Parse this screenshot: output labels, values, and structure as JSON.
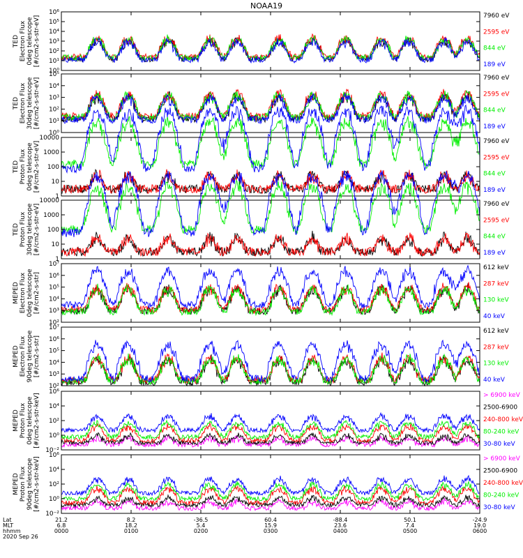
{
  "title": "NOAA19",
  "footer": {
    "row_labels": [
      "Lat",
      "MLT",
      "hhmm"
    ],
    "date": "2020 Sep 26",
    "ticks": [
      {
        "lat": "21.2",
        "mlt": "6.8",
        "hhmm": "0000"
      },
      {
        "lat": "8.2",
        "mlt": "18.2",
        "hhmm": "0100"
      },
      {
        "lat": "-36.5",
        "mlt": "5.4",
        "hhmm": "0200"
      },
      {
        "lat": "60.4",
        "mlt": "15.9",
        "hhmm": "0300"
      },
      {
        "lat": "-88.4",
        "mlt": "23.6",
        "hhmm": "0400"
      },
      {
        "lat": "50.1",
        "mlt": "7.4",
        "hhmm": "0500"
      },
      {
        "lat": "-24.9",
        "mlt": "19.0",
        "hhmm": "0600"
      }
    ]
  },
  "colors": {
    "black": "#000000",
    "red": "#ff0000",
    "green": "#00ee00",
    "blue": "#0000ff",
    "magenta": "#ff00ff"
  },
  "chart_data": [
    {
      "type": "line",
      "log_y": true,
      "ylim": [
        1,
        1000000
      ],
      "ylabel": [
        "TED",
        "Electron Flux",
        "0deg telescope",
        "[#/cm2-s-str-eV]"
      ],
      "y_ticks": [
        {
          "v": 1,
          "label": "10⁰"
        },
        {
          "v": 10,
          "label": "10¹"
        },
        {
          "v": 100,
          "label": "10²"
        },
        {
          "v": 1000,
          "label": "10³"
        },
        {
          "v": 10000,
          "label": "10⁴"
        },
        {
          "v": 100000,
          "label": "10⁵"
        },
        {
          "v": 1000000,
          "label": "10⁶"
        }
      ],
      "series": [
        {
          "name": "7960 eV",
          "color": "#000000",
          "base": 15,
          "noise": 2
        },
        {
          "name": "2595 eV",
          "color": "#ff0000",
          "base": 25,
          "noise": 2
        },
        {
          "name": "844 eV",
          "color": "#00ee00",
          "base": 20,
          "noise": 2
        },
        {
          "name": "189 eV",
          "color": "#0000ff",
          "base": 12,
          "noise": 2
        }
      ]
    },
    {
      "type": "line",
      "log_y": true,
      "ylim": [
        1,
        100000
      ],
      "ylabel": [
        "TED",
        "Electron Flux",
        "30deg telescope",
        "[#/cm2-s-str-eV]"
      ],
      "y_ticks": [
        {
          "v": 1,
          "label": "10⁰"
        },
        {
          "v": 10,
          "label": "10¹"
        },
        {
          "v": 100,
          "label": "10²"
        },
        {
          "v": 1000,
          "label": "10³"
        },
        {
          "v": 10000,
          "label": "10⁴"
        },
        {
          "v": 100000,
          "label": "10⁵"
        }
      ],
      "series": [
        {
          "name": "7960 eV",
          "color": "#000000",
          "base": 15,
          "noise": 2
        },
        {
          "name": "2595 eV",
          "color": "#ff0000",
          "base": 25,
          "noise": 2
        },
        {
          "name": "844 eV",
          "color": "#00ee00",
          "base": 20,
          "noise": 2
        },
        {
          "name": "189 eV",
          "color": "#0000ff",
          "base": 12,
          "noise": 2
        }
      ]
    },
    {
      "type": "line",
      "log_y": true,
      "ylim": [
        1,
        10000
      ],
      "ylabel": [
        "TED",
        "Proton Flux",
        "0deg telescope",
        "[#/cm2-s-str-eV]"
      ],
      "y_ticks": [
        {
          "v": 1,
          "label": "1"
        },
        {
          "v": 10,
          "label": "10"
        },
        {
          "v": 100,
          "label": "100"
        },
        {
          "v": 1000,
          "label": "1000"
        },
        {
          "v": 10000,
          "label": "10000"
        }
      ],
      "series": [
        {
          "name": "7960 eV",
          "color": "#000000",
          "base": 3,
          "noise": 1
        },
        {
          "name": "2595 eV",
          "color": "#ff0000",
          "base": 3,
          "noise": 1
        },
        {
          "name": "844 eV",
          "color": "#00ee00",
          "base": 150,
          "noise": 3
        },
        {
          "name": "189 eV",
          "color": "#0000ff",
          "base": 80,
          "noise": 4
        }
      ]
    },
    {
      "type": "line",
      "log_y": true,
      "ylim": [
        1,
        10000
      ],
      "ylabel": [
        "TED",
        "Proton Flux",
        "30deg telescope",
        "[#/cm2-s-str-eV]"
      ],
      "y_ticks": [
        {
          "v": 1,
          "label": "1"
        },
        {
          "v": 10,
          "label": "10"
        },
        {
          "v": 100,
          "label": "100"
        },
        {
          "v": 1000,
          "label": "1000"
        },
        {
          "v": 10000,
          "label": "10000"
        }
      ],
      "series": [
        {
          "name": "7960 eV",
          "color": "#000000",
          "base": 3,
          "noise": 1
        },
        {
          "name": "2595 eV",
          "color": "#ff0000",
          "base": 3,
          "noise": 1
        },
        {
          "name": "844 eV",
          "color": "#00ee00",
          "base": 100,
          "noise": 3
        },
        {
          "name": "189 eV",
          "color": "#0000ff",
          "base": 60,
          "noise": 4
        }
      ]
    },
    {
      "type": "line",
      "log_y": true,
      "ylim": [
        100,
        10000000
      ],
      "ylabel": [
        "MEPED",
        "Electron Flux",
        "0deg telescope",
        "[#/cm2-s-str]"
      ],
      "y_ticks": [
        {
          "v": 100,
          "label": "10²"
        },
        {
          "v": 1000,
          "label": "10³"
        },
        {
          "v": 10000,
          "label": "10⁴"
        },
        {
          "v": 100000,
          "label": "10⁵"
        },
        {
          "v": 1000000,
          "label": "10⁶"
        },
        {
          "v": 10000000,
          "label": "10⁷"
        }
      ],
      "series": [
        {
          "name": "612 keV",
          "color": "#000000",
          "base": 900,
          "noise": 2
        },
        {
          "name": "287 keV",
          "color": "#ff0000",
          "base": 1200,
          "noise": 2
        },
        {
          "name": "130 keV",
          "color": "#00ee00",
          "base": 800,
          "noise": 2
        },
        {
          "name": "40 keV",
          "color": "#0000ff",
          "base": 3000,
          "noise": 3
        }
      ]
    },
    {
      "type": "line",
      "log_y": true,
      "ylim": [
        100,
        10000000
      ],
      "ylabel": [
        "MEPED",
        "Electron Flux",
        "90deg telescope",
        "[#/cm2-s-str]"
      ],
      "y_ticks": [
        {
          "v": 100,
          "label": "10²"
        },
        {
          "v": 1000,
          "label": "10³"
        },
        {
          "v": 10000,
          "label": "10⁴"
        },
        {
          "v": 100000,
          "label": "10⁵"
        },
        {
          "v": 1000000,
          "label": "10⁶"
        },
        {
          "v": 10000000,
          "label": "10⁷"
        }
      ],
      "series": [
        {
          "name": "612 keV",
          "color": "#000000",
          "base": 200,
          "noise": 2
        },
        {
          "name": "287 keV",
          "color": "#ff0000",
          "base": 300,
          "noise": 2
        },
        {
          "name": "130 keV",
          "color": "#00ee00",
          "base": 250,
          "noise": 2
        },
        {
          "name": "40 keV",
          "color": "#0000ff",
          "base": 400,
          "noise": 3
        }
      ]
    },
    {
      "type": "line",
      "log_y": true,
      "ylim": [
        0.01,
        1000000
      ],
      "ylabel": [
        "MEPED",
        "Proton Flux",
        "0deg telescope",
        "[#/cm2-s-str-keV]"
      ],
      "y_ticks": [
        {
          "v": 0.01,
          "label": "10⁻²"
        },
        {
          "v": 1,
          "label": "10⁰"
        },
        {
          "v": 100,
          "label": "10²"
        },
        {
          "v": 10000,
          "label": "10⁴"
        },
        {
          "v": 1000000,
          "label": "10⁶"
        }
      ],
      "series": [
        {
          "name": "> 6900 keV",
          "color": "#ff00ff",
          "base": 0.05,
          "noise": 1
        },
        {
          "name": "2500-6900",
          "color": "#000000",
          "base": 0.1,
          "noise": 1
        },
        {
          "name": "240-800 keV",
          "color": "#ff0000",
          "base": 0.2,
          "noise": 2
        },
        {
          "name": "80-240 keV",
          "color": "#00ee00",
          "base": 0.6,
          "noise": 2
        },
        {
          "name": "30-80 keV",
          "color": "#0000ff",
          "base": 5,
          "noise": 2
        }
      ]
    },
    {
      "type": "line",
      "log_y": true,
      "ylim": [
        0.01,
        1000000
      ],
      "ylabel": [
        "MEPED",
        "Proton Flux",
        "90deg telescope",
        "[#/cm2-s-str-keV]"
      ],
      "y_ticks": [
        {
          "v": 0.01,
          "label": "10⁻²"
        },
        {
          "v": 1,
          "label": "10⁰"
        },
        {
          "v": 100,
          "label": "10²"
        },
        {
          "v": 10000,
          "label": "10⁴"
        },
        {
          "v": 1000000,
          "label": "10⁶"
        }
      ],
      "series": [
        {
          "name": "> 6900 keV",
          "color": "#ff00ff",
          "base": 0.05,
          "noise": 1
        },
        {
          "name": "2500-6900",
          "color": "#000000",
          "base": 0.15,
          "noise": 1
        },
        {
          "name": "240-800 keV",
          "color": "#ff0000",
          "base": 0.3,
          "noise": 2
        },
        {
          "name": "80-240 keV",
          "color": "#00ee00",
          "base": 1.0,
          "noise": 2
        },
        {
          "name": "30-80 keV",
          "color": "#0000ff",
          "base": 6,
          "noise": 2
        }
      ]
    }
  ]
}
